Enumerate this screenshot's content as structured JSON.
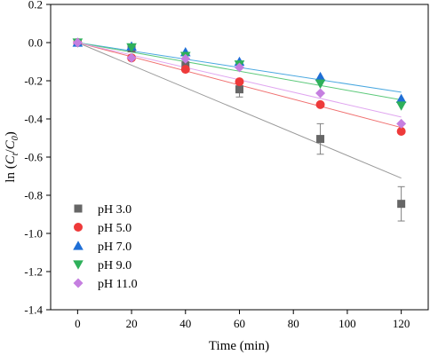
{
  "chart_data": {
    "type": "scatter",
    "title": "",
    "xlabel": "Time (min)",
    "ylabel": {
      "prefix": "ln (",
      "c1": "C",
      "c1_sub": "t",
      "slash": "/",
      "c2": "C",
      "c2_sub": "0",
      "suffix": ")"
    },
    "xlim": [
      -10,
      130
    ],
    "ylim": [
      -1.4,
      0.2
    ],
    "xticks": [
      0,
      20,
      40,
      60,
      80,
      100,
      120
    ],
    "yticks": [
      0.2,
      0.0,
      -0.2,
      -0.4,
      -0.6,
      -0.8,
      -1.0,
      -1.2,
      -1.4
    ],
    "xtick_labels": [
      "0",
      "20",
      "40",
      "60",
      "80",
      "100",
      "120"
    ],
    "ytick_labels": [
      "0.2",
      "0.0",
      "-0.2",
      "-0.4",
      "-0.6",
      "-0.8",
      "-1.0",
      "-1.2",
      "-1.4"
    ],
    "legend_placement": "lower-left",
    "grid": false,
    "x": [
      0,
      20,
      40,
      60,
      90,
      120
    ],
    "series": [
      {
        "name": "pH 3.0",
        "marker": "square",
        "color": "#666666",
        "line_color": "#999999",
        "values": [
          0.0,
          -0.03,
          -0.12,
          -0.245,
          -0.505,
          -0.845
        ],
        "errors": [
          0.0,
          0.0,
          0.02,
          0.04,
          0.08,
          0.09
        ],
        "fit": [
          0,
          -0.71
        ]
      },
      {
        "name": "pH 5.0",
        "marker": "circle",
        "color": "#ee3a3a",
        "line_color": "#f07070",
        "values": [
          0.0,
          -0.08,
          -0.14,
          -0.205,
          -0.325,
          -0.465
        ],
        "errors": [
          0,
          0,
          0,
          0,
          0,
          0
        ],
        "fit": [
          0,
          -0.445
        ]
      },
      {
        "name": "pH 7.0",
        "marker": "triangle-up",
        "color": "#1f6fd6",
        "line_color": "#4aa8e0",
        "values": [
          0.0,
          -0.02,
          -0.05,
          -0.1,
          -0.18,
          -0.295
        ],
        "errors": [
          0,
          0,
          0,
          0,
          0,
          0
        ],
        "fit": [
          0,
          -0.26
        ]
      },
      {
        "name": "pH 9.0",
        "marker": "triangle-down",
        "color": "#2eb05a",
        "line_color": "#5cc97a",
        "values": [
          0.0,
          -0.025,
          -0.07,
          -0.115,
          -0.215,
          -0.33
        ],
        "errors": [
          0,
          0,
          0,
          0,
          0,
          0
        ],
        "fit": [
          0,
          -0.3
        ]
      },
      {
        "name": "pH 11.0",
        "marker": "diamond",
        "color": "#c57fe0",
        "line_color": "#e0a6f0",
        "values": [
          0.0,
          -0.08,
          -0.085,
          -0.13,
          -0.265,
          -0.425
        ],
        "errors": [
          0,
          0,
          0,
          0,
          0,
          0
        ],
        "fit": [
          0,
          -0.39
        ]
      }
    ]
  }
}
